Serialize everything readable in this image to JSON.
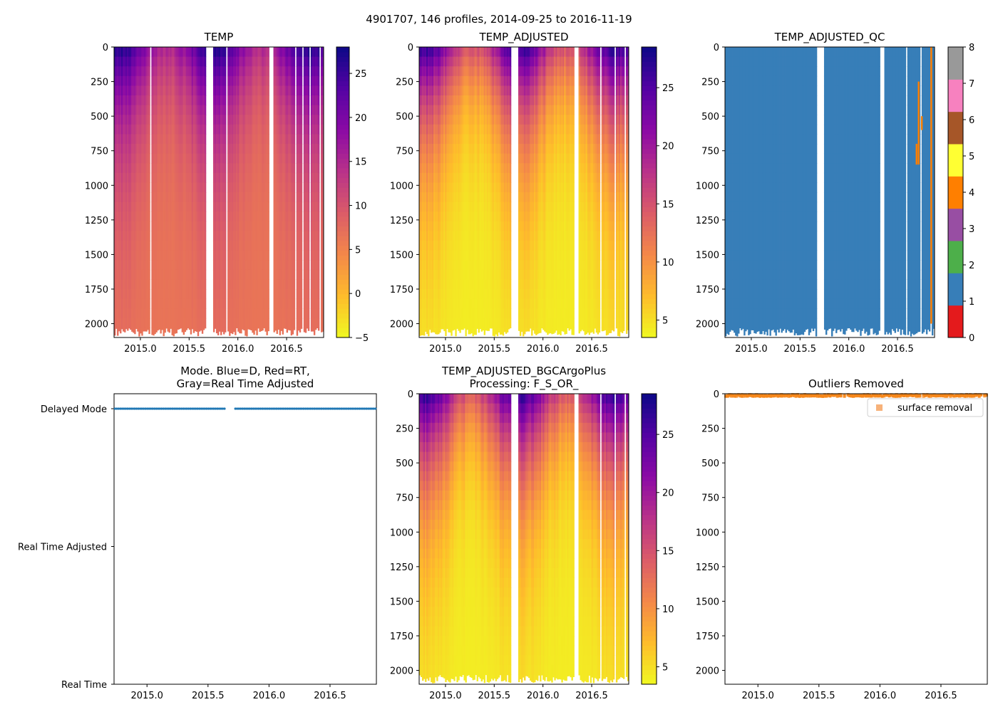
{
  "figure_title": "4901707, 146 profiles, 2014-09-25 to 2016-11-19",
  "chart_data": [
    {
      "id": "temp",
      "type": "heatmap",
      "title": "TEMP",
      "x_ticks": [
        "2015.0",
        "2015.5",
        "2016.0",
        "2016.5"
      ],
      "x_tick_values": [
        2015.0,
        2015.5,
        2016.0,
        2016.5
      ],
      "xlim": [
        2014.73,
        2016.88
      ],
      "y_ticks": [
        "0",
        "250",
        "500",
        "750",
        "1000",
        "1250",
        "1500",
        "1750",
        "2000"
      ],
      "y_tick_values": [
        0,
        250,
        500,
        750,
        1000,
        1250,
        1500,
        1750,
        2000
      ],
      "ylim": [
        2100,
        0
      ],
      "colormap": "plasma_r",
      "colorbar": {
        "ticks": [
          "−5",
          "0",
          "5",
          "10",
          "15",
          "20",
          "25"
        ],
        "tick_values": [
          -5,
          0,
          5,
          10,
          15,
          20,
          25
        ],
        "range": [
          -5,
          28
        ]
      }
    },
    {
      "id": "temp_adjusted",
      "type": "heatmap",
      "title": "TEMP_ADJUSTED",
      "x_ticks": [
        "2015.0",
        "2015.5",
        "2016.0",
        "2016.5"
      ],
      "x_tick_values": [
        2015.0,
        2015.5,
        2016.0,
        2016.5
      ],
      "xlim": [
        2014.73,
        2016.88
      ],
      "y_ticks": [
        "0",
        "250",
        "500",
        "750",
        "1000",
        "1250",
        "1500",
        "1750",
        "2000"
      ],
      "y_tick_values": [
        0,
        250,
        500,
        750,
        1000,
        1250,
        1500,
        1750,
        2000
      ],
      "ylim": [
        2100,
        0
      ],
      "colormap": "plasma_r",
      "colorbar": {
        "ticks": [
          "5",
          "10",
          "15",
          "20",
          "25"
        ],
        "tick_values": [
          5,
          10,
          15,
          20,
          25
        ],
        "range": [
          3.5,
          28.5
        ]
      }
    },
    {
      "id": "temp_adjusted_qc",
      "type": "heatmap",
      "title": "TEMP_ADJUSTED_QC",
      "x_ticks": [
        "2015.0",
        "2015.5",
        "2016.0",
        "2016.5"
      ],
      "x_tick_values": [
        2015.0,
        2015.5,
        2016.0,
        2016.5
      ],
      "xlim": [
        2014.73,
        2016.88
      ],
      "y_ticks": [
        "0",
        "250",
        "500",
        "750",
        "1000",
        "1250",
        "1500",
        "1750",
        "2000"
      ],
      "y_tick_values": [
        0,
        250,
        500,
        750,
        1000,
        1250,
        1500,
        1750,
        2000
      ],
      "ylim": [
        2100,
        0
      ],
      "dominant_flag": 1,
      "colorbar": {
        "ticks": [
          "0",
          "1",
          "2",
          "3",
          "4",
          "5",
          "6",
          "7",
          "8"
        ],
        "tick_values": [
          0,
          1,
          2,
          3,
          4,
          5,
          6,
          7,
          8
        ],
        "range": [
          0,
          8
        ],
        "colors": [
          "#e41a1c",
          "#377eb8",
          "#4daf4a",
          "#984ea3",
          "#ff7f00",
          "#ffff33",
          "#a65628",
          "#f781bf",
          "#999999"
        ]
      }
    },
    {
      "id": "mode",
      "type": "scatter",
      "title": "Mode. Blue=D, Red=RT,",
      "title_line2": "Gray=Real Time Adjusted",
      "x_ticks": [
        "2015.0",
        "2015.5",
        "2016.0",
        "2016.5"
      ],
      "x_tick_values": [
        2015.0,
        2015.5,
        2016.0,
        2016.5
      ],
      "xlim": [
        2014.73,
        2016.88
      ],
      "y_categories": [
        "Real Time",
        "Real Time Adjusted",
        "Delayed Mode"
      ],
      "points_category": "Delayed Mode",
      "point_color": "#1f77b4",
      "point_segments": [
        [
          2014.73,
          2015.64
        ],
        [
          2015.71,
          2016.88
        ]
      ]
    },
    {
      "id": "temp_adjusted_bgc",
      "type": "heatmap",
      "title": "TEMP_ADJUSTED_BGCArgoPlus",
      "title_line2": "Processing: F_S_OR_",
      "x_ticks": [
        "2015.0",
        "2015.5",
        "2016.0",
        "2016.5"
      ],
      "x_tick_values": [
        2015.0,
        2015.5,
        2016.0,
        2016.5
      ],
      "xlim": [
        2014.73,
        2016.88
      ],
      "y_ticks": [
        "0",
        "250",
        "500",
        "750",
        "1000",
        "1250",
        "1500",
        "1750",
        "2000"
      ],
      "y_tick_values": [
        0,
        250,
        500,
        750,
        1000,
        1250,
        1500,
        1750,
        2000
      ],
      "ylim": [
        2100,
        0
      ],
      "colormap": "plasma_r",
      "colorbar": {
        "ticks": [
          "5",
          "10",
          "15",
          "20",
          "25"
        ],
        "tick_values": [
          5,
          10,
          15,
          20,
          25
        ],
        "range": [
          3.5,
          28.5
        ]
      }
    },
    {
      "id": "outliers",
      "type": "scatter",
      "title": "Outliers Removed",
      "x_ticks": [
        "2015.0",
        "2015.5",
        "2016.0",
        "2016.5"
      ],
      "x_tick_values": [
        2015.0,
        2015.5,
        2016.0,
        2016.5
      ],
      "xlim": [
        2014.73,
        2016.88
      ],
      "y_ticks": [
        "0",
        "250",
        "500",
        "750",
        "1000",
        "1250",
        "1500",
        "1750",
        "2000"
      ],
      "y_tick_values": [
        0,
        250,
        500,
        750,
        1000,
        1250,
        1500,
        1750,
        2000
      ],
      "ylim": [
        2100,
        0
      ],
      "legend": {
        "label": "surface removal",
        "color": "#f7b27a",
        "placement": "top-right"
      },
      "removed_depth_range": [
        0,
        15
      ],
      "point_color": "#f58518"
    }
  ]
}
